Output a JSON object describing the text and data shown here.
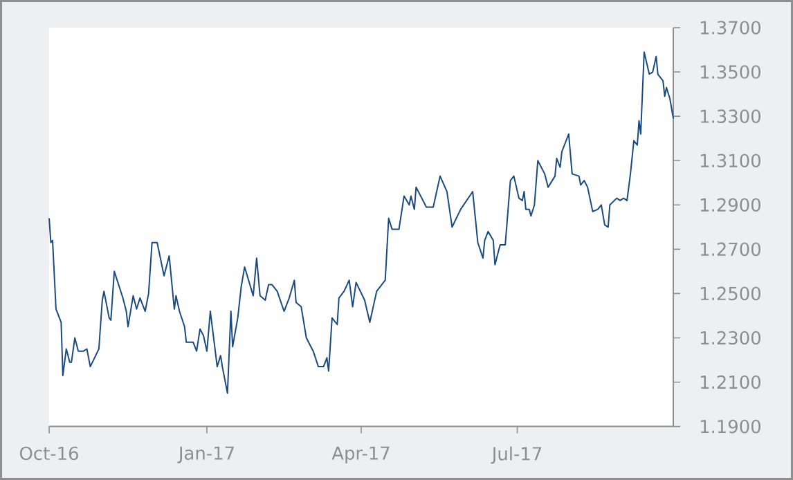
{
  "chart_data": {
    "type": "line",
    "x": [
      "2016-10-01",
      "2016-10-02",
      "2016-10-03",
      "2016-10-05",
      "2016-10-08",
      "2016-10-09",
      "2016-10-11",
      "2016-10-13",
      "2016-10-14",
      "2016-10-16",
      "2016-10-18",
      "2016-10-21",
      "2016-10-23",
      "2016-10-25",
      "2016-10-30",
      "2016-11-01",
      "2016-11-02",
      "2016-11-05",
      "2016-11-06",
      "2016-11-08",
      "2016-11-13",
      "2016-11-15",
      "2016-11-16",
      "2016-11-19",
      "2016-11-21",
      "2016-11-23",
      "2016-11-26",
      "2016-11-28",
      "2016-11-30",
      "2016-12-03",
      "2016-12-07",
      "2016-12-10",
      "2016-12-13",
      "2016-12-14",
      "2016-12-16",
      "2016-12-19",
      "2016-12-20",
      "2016-12-24",
      "2016-12-26",
      "2016-12-28",
      "2016-12-30",
      "2017-01-01",
      "2017-01-03",
      "2017-01-07",
      "2017-01-09",
      "2017-01-10",
      "2017-01-13",
      "2017-01-15",
      "2017-01-16",
      "2017-01-19",
      "2017-01-21",
      "2017-01-23",
      "2017-01-28",
      "2017-01-30",
      "2017-02-01",
      "2017-02-04",
      "2017-02-06",
      "2017-02-08",
      "2017-02-11",
      "2017-02-15",
      "2017-02-18",
      "2017-02-21",
      "2017-02-22",
      "2017-02-25",
      "2017-02-28",
      "2017-03-04",
      "2017-03-07",
      "2017-03-10",
      "2017-03-12",
      "2017-03-13",
      "2017-03-15",
      "2017-03-18",
      "2017-03-19",
      "2017-03-22",
      "2017-03-25",
      "2017-03-27",
      "2017-03-29",
      "2017-04-03",
      "2017-04-06",
      "2017-04-08",
      "2017-04-10",
      "2017-04-15",
      "2017-04-17",
      "2017-04-19",
      "2017-04-23",
      "2017-04-26",
      "2017-04-29",
      "2017-04-30",
      "2017-05-02",
      "2017-05-03",
      "2017-05-09",
      "2017-05-13",
      "2017-05-17",
      "2017-05-21",
      "2017-05-24",
      "2017-05-29",
      "2017-06-05",
      "2017-06-08",
      "2017-06-11",
      "2017-06-12",
      "2017-06-14",
      "2017-06-17",
      "2017-06-18",
      "2017-06-21",
      "2017-06-24",
      "2017-06-27",
      "2017-06-29",
      "2017-07-02",
      "2017-07-04",
      "2017-07-05",
      "2017-07-06",
      "2017-07-08",
      "2017-07-09",
      "2017-07-11",
      "2017-07-13",
      "2017-07-17",
      "2017-07-19",
      "2017-07-23",
      "2017-07-24",
      "2017-07-26",
      "2017-07-27",
      "2017-07-31",
      "2017-08-02",
      "2017-08-06",
      "2017-08-07",
      "2017-08-09",
      "2017-08-11",
      "2017-08-14",
      "2017-08-17",
      "2017-08-19",
      "2017-08-21",
      "2017-08-23",
      "2017-08-24",
      "2017-08-28",
      "2017-08-30",
      "2017-09-01",
      "2017-09-03",
      "2017-09-05",
      "2017-09-07",
      "2017-09-09",
      "2017-09-10",
      "2017-09-11",
      "2017-09-13",
      "2017-09-16",
      "2017-09-18",
      "2017-09-20",
      "2017-09-21",
      "2017-09-24",
      "2017-09-25",
      "2017-09-26",
      "2017-09-28",
      "2017-09-30"
    ],
    "series": [
      {
        "color": "#1b4a7e",
        "values": [
          1.284,
          1.273,
          1.274,
          1.243,
          1.237,
          1.213,
          1.225,
          1.219,
          1.219,
          1.23,
          1.224,
          1.224,
          1.225,
          1.217,
          1.225,
          1.247,
          1.251,
          1.239,
          1.238,
          1.26,
          1.248,
          1.242,
          1.235,
          1.249,
          1.243,
          1.248,
          1.242,
          1.25,
          1.273,
          1.273,
          1.258,
          1.267,
          1.243,
          1.249,
          1.242,
          1.235,
          1.228,
          1.228,
          1.224,
          1.234,
          1.231,
          1.224,
          1.242,
          1.217,
          1.222,
          1.217,
          1.205,
          1.242,
          1.226,
          1.239,
          1.253,
          1.262,
          1.249,
          1.266,
          1.249,
          1.247,
          1.254,
          1.254,
          1.251,
          1.242,
          1.248,
          1.256,
          1.246,
          1.244,
          1.23,
          1.224,
          1.217,
          1.217,
          1.221,
          1.215,
          1.239,
          1.236,
          1.248,
          1.251,
          1.256,
          1.244,
          1.255,
          1.247,
          1.237,
          1.244,
          1.251,
          1.256,
          1.284,
          1.279,
          1.279,
          1.294,
          1.29,
          1.294,
          1.288,
          1.298,
          1.289,
          1.289,
          1.303,
          1.296,
          1.28,
          1.288,
          1.296,
          1.273,
          1.266,
          1.274,
          1.278,
          1.274,
          1.263,
          1.272,
          1.272,
          1.301,
          1.303,
          1.293,
          1.292,
          1.296,
          1.288,
          1.288,
          1.285,
          1.29,
          1.31,
          1.304,
          1.298,
          1.303,
          1.311,
          1.307,
          1.314,
          1.322,
          1.304,
          1.303,
          1.299,
          1.301,
          1.298,
          1.287,
          1.288,
          1.29,
          1.281,
          1.28,
          1.29,
          1.293,
          1.292,
          1.293,
          1.292,
          1.304,
          1.319,
          1.317,
          1.328,
          1.322,
          1.359,
          1.349,
          1.35,
          1.357,
          1.349,
          1.346,
          1.339,
          1.343,
          1.338,
          1.329
        ]
      }
    ],
    "xlim": [
      "2016-10-01",
      "2017-09-30"
    ],
    "xticks": [
      {
        "value": "2016-10-01",
        "label": "Oct-16"
      },
      {
        "value": "2017-01-01",
        "label": "Jan-17"
      },
      {
        "value": "2017-04-01",
        "label": "Apr-17"
      },
      {
        "value": "2017-07-01",
        "label": "Jul-17"
      }
    ],
    "ylim": [
      1.19,
      1.37
    ],
    "yticks": [
      {
        "value": 1.19,
        "label": "1.1900"
      },
      {
        "value": 1.21,
        "label": "1.2100"
      },
      {
        "value": 1.23,
        "label": "1.2300"
      },
      {
        "value": 1.25,
        "label": "1.2500"
      },
      {
        "value": 1.27,
        "label": "1.2700"
      },
      {
        "value": 1.29,
        "label": "1.2900"
      },
      {
        "value": 1.31,
        "label": "1.3100"
      },
      {
        "value": 1.33,
        "label": "1.3300"
      },
      {
        "value": 1.35,
        "label": "1.3500"
      },
      {
        "value": 1.37,
        "label": "1.3700"
      }
    ],
    "grid": false,
    "marker": "none",
    "line_style": "solid"
  }
}
